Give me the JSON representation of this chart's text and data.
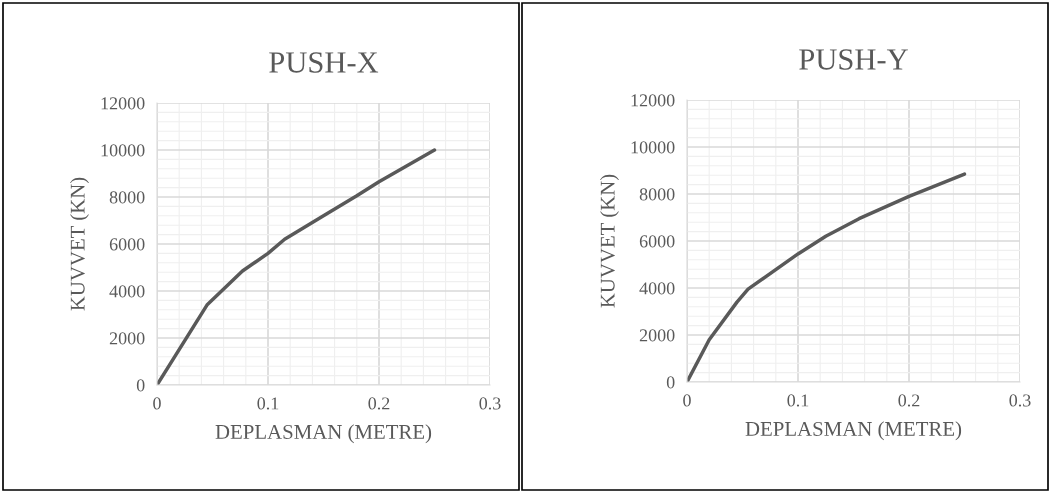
{
  "chart_data": [
    {
      "type": "line",
      "title": "PUSH-X",
      "xlabel": "DEPLASMAN (METRE)",
      "ylabel": "KUVVET (KN)",
      "x": [
        0,
        0.045,
        0.077,
        0.1,
        0.115,
        0.15,
        0.18,
        0.2,
        0.25
      ],
      "series": [
        {
          "color": "#595959",
          "values": [
            0,
            3400,
            4850,
            5600,
            6200,
            7200,
            8050,
            8650,
            10000
          ]
        }
      ],
      "xlim": [
        0,
        0.3
      ],
      "xticks": [
        0,
        0.1,
        0.2,
        0.3
      ],
      "ylim": [
        0,
        12000
      ],
      "yticks": [
        0,
        2000,
        4000,
        6000,
        8000,
        10000,
        12000
      ],
      "grid": true,
      "marker": "none",
      "line_style": "solid"
    },
    {
      "type": "line",
      "title": "PUSH-Y",
      "xlabel": "DEPLASMAN (METRE)",
      "ylabel": "KUVVET (KN)",
      "x": [
        0,
        0.02,
        0.045,
        0.055,
        0.1,
        0.125,
        0.155,
        0.2,
        0.25
      ],
      "series": [
        {
          "color": "#595959",
          "values": [
            0,
            1800,
            3400,
            3950,
            5450,
            6200,
            6950,
            7900,
            8850
          ]
        }
      ],
      "xlim": [
        0,
        0.3
      ],
      "xticks": [
        0,
        0.1,
        0.2,
        0.3
      ],
      "ylim": [
        0,
        12000
      ],
      "yticks": [
        0,
        2000,
        4000,
        6000,
        8000,
        10000,
        12000
      ],
      "grid": true,
      "marker": "none",
      "line_style": "solid"
    }
  ]
}
